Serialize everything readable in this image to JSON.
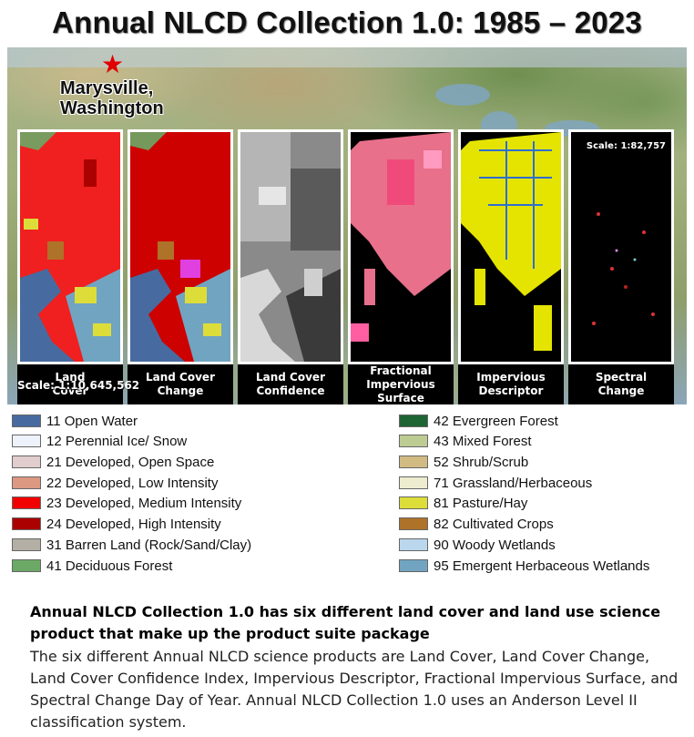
{
  "title": "Annual NLCD Collection 1.0: 1985 – 2023",
  "map": {
    "location_label_line1": "Marysville,",
    "location_label_line2": "Washington",
    "location_marker_icon": "star-icon",
    "scale_overview": "Scale: 1:10,645,562",
    "scale_detail": "Scale: 1:82,757"
  },
  "panels": [
    {
      "line1": "Land",
      "line2": "Cover"
    },
    {
      "line1": "Land Cover",
      "line2": "Change"
    },
    {
      "line1": "Land Cover",
      "line2": "Confidence"
    },
    {
      "line1": "Fractional",
      "line2": "Impervious Surface"
    },
    {
      "line1": "Impervious",
      "line2": "Descriptor"
    },
    {
      "line1": "Spectral",
      "line2": "Change"
    }
  ],
  "legend_left": [
    {
      "label": "11 Open Water",
      "color": "#476ba1"
    },
    {
      "label": "12 Perennial Ice/ Snow",
      "color": "#eef2fb"
    },
    {
      "label": "21 Developed, Open Space",
      "color": "#e1cdce"
    },
    {
      "label": "22 Developed, Low Intensity",
      "color": "#dc9881"
    },
    {
      "label": "23 Developed, Medium Intensity",
      "color": "#f10100"
    },
    {
      "label": "24 Developed, High Intensity",
      "color": "#ab0101"
    },
    {
      "label": "31 Barren Land (Rock/Sand/Clay)",
      "color": "#b3afa4"
    },
    {
      "label": "41 Deciduous Forest",
      "color": "#6ca966"
    }
  ],
  "legend_right": [
    {
      "label": "42 Evergreen Forest",
      "color": "#1d6533"
    },
    {
      "label": "43 Mixed Forest",
      "color": "#bdcc93"
    },
    {
      "label": "52 Shrub/Scrub",
      "color": "#d1bb82"
    },
    {
      "label": "71 Grassland/Herbaceous",
      "color": "#edecce"
    },
    {
      "label": "81 Pasture/Hay",
      "color": "#dddd3a"
    },
    {
      "label": "82 Cultivated Crops",
      "color": "#ae7229"
    },
    {
      "label": "90 Woody Wetlands",
      "color": "#bbd7ed"
    },
    {
      "label": "95 Emergent Herbaceous Wetlands",
      "color": "#71a4c1"
    }
  ],
  "description": {
    "heading": "Annual NLCD Collection 1.0 has six different land cover and land use science product that make up the product suite package",
    "body": "The six different Annual NLCD science products are Land Cover, Land Cover Change, Land Cover Confidence Index, Impervious Descriptor, Fractional Impervious Surface, and Spectral Change Day of Year. Annual NLCD Collection 1.0 uses an Anderson Level II classification system."
  }
}
